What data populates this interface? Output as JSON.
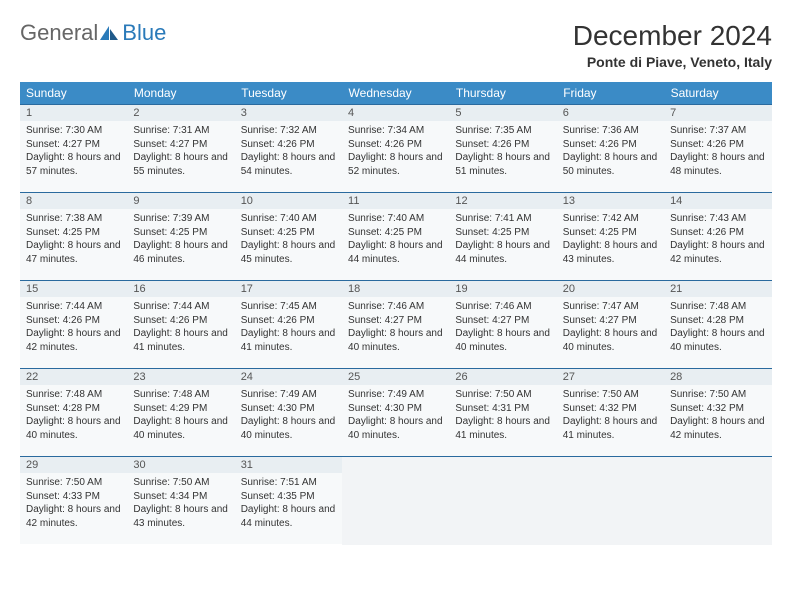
{
  "logo": {
    "general": "General",
    "blue": "Blue"
  },
  "title": "December 2024",
  "location": "Ponte di Piave, Veneto, Italy",
  "colors": {
    "header_bg": "#3b8bc6",
    "header_text": "#ffffff",
    "daynum_bg": "#e8eef2",
    "daybody_bg": "#f7f9fa",
    "border": "#2a6a9e",
    "logo_blue": "#2a7ab9",
    "logo_gray": "#666666",
    "text": "#333333"
  },
  "weekdays": [
    "Sunday",
    "Monday",
    "Tuesday",
    "Wednesday",
    "Thursday",
    "Friday",
    "Saturday"
  ],
  "weeks": [
    [
      {
        "n": "1",
        "sr": "7:30 AM",
        "ss": "4:27 PM",
        "dl": "8 hours and 57 minutes."
      },
      {
        "n": "2",
        "sr": "7:31 AM",
        "ss": "4:27 PM",
        "dl": "8 hours and 55 minutes."
      },
      {
        "n": "3",
        "sr": "7:32 AM",
        "ss": "4:26 PM",
        "dl": "8 hours and 54 minutes."
      },
      {
        "n": "4",
        "sr": "7:34 AM",
        "ss": "4:26 PM",
        "dl": "8 hours and 52 minutes."
      },
      {
        "n": "5",
        "sr": "7:35 AM",
        "ss": "4:26 PM",
        "dl": "8 hours and 51 minutes."
      },
      {
        "n": "6",
        "sr": "7:36 AM",
        "ss": "4:26 PM",
        "dl": "8 hours and 50 minutes."
      },
      {
        "n": "7",
        "sr": "7:37 AM",
        "ss": "4:26 PM",
        "dl": "8 hours and 48 minutes."
      }
    ],
    [
      {
        "n": "8",
        "sr": "7:38 AM",
        "ss": "4:25 PM",
        "dl": "8 hours and 47 minutes."
      },
      {
        "n": "9",
        "sr": "7:39 AM",
        "ss": "4:25 PM",
        "dl": "8 hours and 46 minutes."
      },
      {
        "n": "10",
        "sr": "7:40 AM",
        "ss": "4:25 PM",
        "dl": "8 hours and 45 minutes."
      },
      {
        "n": "11",
        "sr": "7:40 AM",
        "ss": "4:25 PM",
        "dl": "8 hours and 44 minutes."
      },
      {
        "n": "12",
        "sr": "7:41 AM",
        "ss": "4:25 PM",
        "dl": "8 hours and 44 minutes."
      },
      {
        "n": "13",
        "sr": "7:42 AM",
        "ss": "4:25 PM",
        "dl": "8 hours and 43 minutes."
      },
      {
        "n": "14",
        "sr": "7:43 AM",
        "ss": "4:26 PM",
        "dl": "8 hours and 42 minutes."
      }
    ],
    [
      {
        "n": "15",
        "sr": "7:44 AM",
        "ss": "4:26 PM",
        "dl": "8 hours and 42 minutes."
      },
      {
        "n": "16",
        "sr": "7:44 AM",
        "ss": "4:26 PM",
        "dl": "8 hours and 41 minutes."
      },
      {
        "n": "17",
        "sr": "7:45 AM",
        "ss": "4:26 PM",
        "dl": "8 hours and 41 minutes."
      },
      {
        "n": "18",
        "sr": "7:46 AM",
        "ss": "4:27 PM",
        "dl": "8 hours and 40 minutes."
      },
      {
        "n": "19",
        "sr": "7:46 AM",
        "ss": "4:27 PM",
        "dl": "8 hours and 40 minutes."
      },
      {
        "n": "20",
        "sr": "7:47 AM",
        "ss": "4:27 PM",
        "dl": "8 hours and 40 minutes."
      },
      {
        "n": "21",
        "sr": "7:48 AM",
        "ss": "4:28 PM",
        "dl": "8 hours and 40 minutes."
      }
    ],
    [
      {
        "n": "22",
        "sr": "7:48 AM",
        "ss": "4:28 PM",
        "dl": "8 hours and 40 minutes."
      },
      {
        "n": "23",
        "sr": "7:48 AM",
        "ss": "4:29 PM",
        "dl": "8 hours and 40 minutes."
      },
      {
        "n": "24",
        "sr": "7:49 AM",
        "ss": "4:30 PM",
        "dl": "8 hours and 40 minutes."
      },
      {
        "n": "25",
        "sr": "7:49 AM",
        "ss": "4:30 PM",
        "dl": "8 hours and 40 minutes."
      },
      {
        "n": "26",
        "sr": "7:50 AM",
        "ss": "4:31 PM",
        "dl": "8 hours and 41 minutes."
      },
      {
        "n": "27",
        "sr": "7:50 AM",
        "ss": "4:32 PM",
        "dl": "8 hours and 41 minutes."
      },
      {
        "n": "28",
        "sr": "7:50 AM",
        "ss": "4:32 PM",
        "dl": "8 hours and 42 minutes."
      }
    ],
    [
      {
        "n": "29",
        "sr": "7:50 AM",
        "ss": "4:33 PM",
        "dl": "8 hours and 42 minutes."
      },
      {
        "n": "30",
        "sr": "7:50 AM",
        "ss": "4:34 PM",
        "dl": "8 hours and 43 minutes."
      },
      {
        "n": "31",
        "sr": "7:51 AM",
        "ss": "4:35 PM",
        "dl": "8 hours and 44 minutes."
      },
      null,
      null,
      null,
      null
    ]
  ],
  "labels": {
    "sunrise": "Sunrise:",
    "sunset": "Sunset:",
    "daylight": "Daylight:"
  }
}
